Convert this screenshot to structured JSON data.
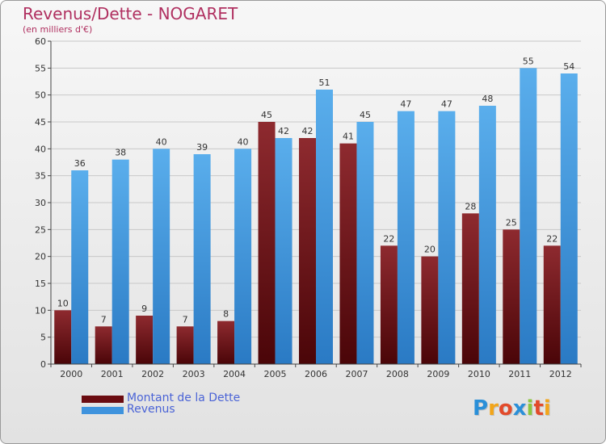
{
  "header": {
    "title": "Revenus/Dette - NOGARET",
    "subtitle": "(en milliers d'€)"
  },
  "colors": {
    "dette": "#7b1a1f",
    "revenus": "#3f93dd",
    "title": "#b03060",
    "legend_text": "#4a63d6"
  },
  "legend": {
    "items": [
      {
        "label": "Montant de la Dette",
        "color": "#7b1a1f"
      },
      {
        "label": "Revenus",
        "color": "#3f93dd"
      }
    ]
  },
  "logo": {
    "text": "Proxiti",
    "letter_colors": [
      "#2a8fd8",
      "#f2a51a",
      "#e24b2b",
      "#2a8fd8",
      "#8cc63f",
      "#e24b2b",
      "#f2a51a"
    ]
  },
  "chart_data": {
    "type": "bar",
    "title": "Revenus/Dette - NOGARET",
    "subtitle": "(en milliers d'€)",
    "categories": [
      "2000",
      "2001",
      "2002",
      "2003",
      "2004",
      "2005",
      "2006",
      "2007",
      "2008",
      "2009",
      "2010",
      "2011",
      "2012"
    ],
    "series": [
      {
        "name": "Montant de la Dette",
        "color": "#7b1a1f",
        "values": [
          10,
          7,
          9,
          7,
          8,
          45,
          42,
          41,
          22,
          20,
          28,
          25,
          22
        ]
      },
      {
        "name": "Revenus",
        "color": "#3f93dd",
        "values": [
          36,
          38,
          40,
          39,
          40,
          42,
          51,
          45,
          47,
          47,
          48,
          55,
          54
        ]
      }
    ],
    "ylim": [
      0,
      60
    ],
    "yticks": [
      0,
      5,
      10,
      15,
      20,
      25,
      30,
      35,
      40,
      45,
      50,
      55,
      60
    ],
    "grid": true,
    "legend_position": "bottom-left"
  }
}
